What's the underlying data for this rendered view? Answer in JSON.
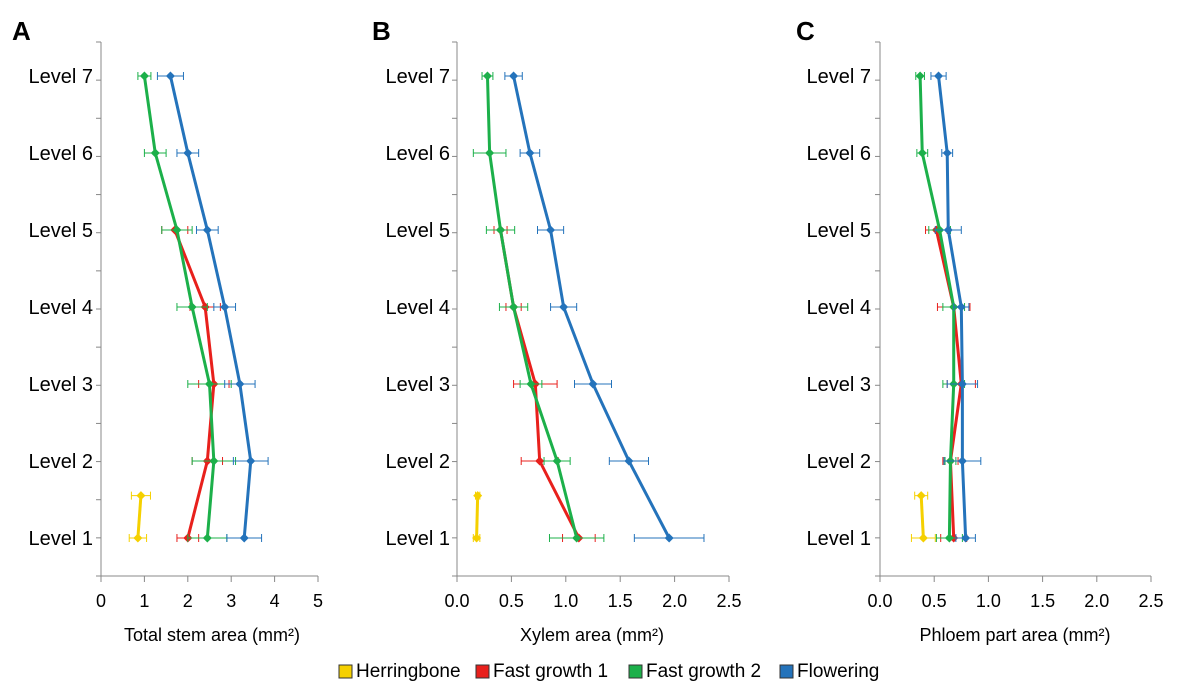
{
  "colors": {
    "Herringbone": "#f5d000",
    "Fast growth 1": "#e8201c",
    "Fast growth 2": "#1cb04a",
    "Flowering": "#2473bb"
  },
  "legend": {
    "items": [
      "Herringbone",
      "Fast growth 1",
      "Fast growth 2",
      "Flowering"
    ]
  },
  "chart_data": [
    {
      "type": "line",
      "panel": "A",
      "xlabel": "Total stem area (mm²)",
      "categories": [
        "Level 1",
        "Level 2",
        "Level 3",
        "Level 4",
        "Level 5",
        "Level 6",
        "Level 7"
      ],
      "xlim": [
        0,
        5
      ],
      "xticks": [
        "0",
        "1",
        "2",
        "3",
        "4",
        "5"
      ],
      "series": [
        {
          "name": "Herringbone",
          "points": [
            {
              "level": 1,
              "x": 0.85,
              "err": 0.2
            },
            {
              "level": 1.55,
              "x": 0.92,
              "err": 0.22
            }
          ]
        },
        {
          "name": "Fast growth 1",
          "points": [
            {
              "level": 1,
              "x": 2.0,
              "err": 0.25
            },
            {
              "level": 2,
              "x": 2.45,
              "err": 0.35
            },
            {
              "level": 3,
              "x": 2.6,
              "err": 0.35
            },
            {
              "level": 4,
              "x": 2.4,
              "err": 0.35
            },
            {
              "level": 5,
              "x": 1.7,
              "err": 0.3
            }
          ]
        },
        {
          "name": "Fast growth 2",
          "points": [
            {
              "level": 1,
              "x": 2.45,
              "err": 0.45
            },
            {
              "level": 2,
              "x": 2.6,
              "err": 0.5
            },
            {
              "level": 3,
              "x": 2.5,
              "err": 0.5
            },
            {
              "level": 4,
              "x": 2.1,
              "err": 0.35
            },
            {
              "level": 5,
              "x": 1.75,
              "err": 0.35
            },
            {
              "level": 6,
              "x": 1.25,
              "err": 0.25
            },
            {
              "level": 7,
              "x": 1.0,
              "err": 0.15
            }
          ]
        },
        {
          "name": "Flowering",
          "points": [
            {
              "level": 1,
              "x": 3.3,
              "err": 0.4
            },
            {
              "level": 2,
              "x": 3.45,
              "err": 0.4
            },
            {
              "level": 3,
              "x": 3.2,
              "err": 0.35
            },
            {
              "level": 4,
              "x": 2.85,
              "err": 0.25
            },
            {
              "level": 5,
              "x": 2.45,
              "err": 0.25
            },
            {
              "level": 6,
              "x": 2.0,
              "err": 0.25
            },
            {
              "level": 7,
              "x": 1.6,
              "err": 0.3
            }
          ]
        }
      ]
    },
    {
      "type": "line",
      "panel": "B",
      "xlabel": "Xylem area (mm²)",
      "categories": [
        "Level 1",
        "Level 2",
        "Level 3",
        "Level 4",
        "Level 5",
        "Level 6",
        "Level 7"
      ],
      "xlim": [
        0,
        2.5
      ],
      "xticks": [
        "0.0",
        "0.5",
        "1.0",
        "1.5",
        "2.0",
        "2.5"
      ],
      "series": [
        {
          "name": "Herringbone",
          "points": [
            {
              "level": 1,
              "x": 0.18,
              "err": 0.03
            },
            {
              "level": 1.55,
              "x": 0.19,
              "err": 0.02
            }
          ]
        },
        {
          "name": "Fast growth 1",
          "points": [
            {
              "level": 1,
              "x": 1.12,
              "err": 0.15
            },
            {
              "level": 2,
              "x": 0.76,
              "err": 0.17
            },
            {
              "level": 3,
              "x": 0.72,
              "err": 0.2
            },
            {
              "level": 4,
              "x": 0.52,
              "err": 0.07
            },
            {
              "level": 5,
              "x": 0.4,
              "err": 0.06
            }
          ]
        },
        {
          "name": "Fast growth 2",
          "points": [
            {
              "level": 1,
              "x": 1.1,
              "err": 0.25
            },
            {
              "level": 2,
              "x": 0.92,
              "err": 0.12
            },
            {
              "level": 3,
              "x": 0.68,
              "err": 0.1
            },
            {
              "level": 4,
              "x": 0.52,
              "err": 0.13
            },
            {
              "level": 5,
              "x": 0.4,
              "err": 0.13
            },
            {
              "level": 6,
              "x": 0.3,
              "err": 0.15
            },
            {
              "level": 7,
              "x": 0.28,
              "err": 0.05
            }
          ]
        },
        {
          "name": "Flowering",
          "points": [
            {
              "level": 1,
              "x": 1.95,
              "err": 0.32
            },
            {
              "level": 2,
              "x": 1.58,
              "err": 0.18
            },
            {
              "level": 3,
              "x": 1.25,
              "err": 0.17
            },
            {
              "level": 4,
              "x": 0.98,
              "err": 0.12
            },
            {
              "level": 5,
              "x": 0.86,
              "err": 0.12
            },
            {
              "level": 6,
              "x": 0.67,
              "err": 0.09
            },
            {
              "level": 7,
              "x": 0.52,
              "err": 0.08
            }
          ]
        }
      ]
    },
    {
      "type": "line",
      "panel": "C",
      "xlabel": "Phloem part area (mm²)",
      "categories": [
        "Level 1",
        "Level 2",
        "Level 3",
        "Level 4",
        "Level 5",
        "Level 6",
        "Level 7"
      ],
      "xlim": [
        0,
        2.5
      ],
      "xticks": [
        "0.0",
        "0.5",
        "1.0",
        "1.5",
        "2.0",
        "2.5"
      ],
      "series": [
        {
          "name": "Herringbone",
          "points": [
            {
              "level": 1,
              "x": 0.4,
              "err": 0.11
            },
            {
              "level": 1.55,
              "x": 0.38,
              "err": 0.06
            }
          ]
        },
        {
          "name": "Fast growth 1",
          "points": [
            {
              "level": 1,
              "x": 0.68,
              "err": 0.12
            },
            {
              "level": 2,
              "x": 0.65,
              "err": 0.07
            },
            {
              "level": 3,
              "x": 0.75,
              "err": 0.13
            },
            {
              "level": 4,
              "x": 0.68,
              "err": 0.15
            },
            {
              "level": 5,
              "x": 0.52,
              "err": 0.1
            }
          ]
        },
        {
          "name": "Fast growth 2",
          "points": [
            {
              "level": 1,
              "x": 0.64,
              "err": 0.12
            },
            {
              "level": 2,
              "x": 0.65,
              "err": 0.05
            },
            {
              "level": 3,
              "x": 0.68,
              "err": 0.1
            },
            {
              "level": 4,
              "x": 0.68,
              "err": 0.1
            },
            {
              "level": 5,
              "x": 0.55,
              "err": 0.1
            },
            {
              "level": 6,
              "x": 0.39,
              "err": 0.05
            },
            {
              "level": 7,
              "x": 0.37,
              "err": 0.04
            }
          ]
        },
        {
          "name": "Flowering",
          "points": [
            {
              "level": 1,
              "x": 0.79,
              "err": 0.09
            },
            {
              "level": 2,
              "x": 0.76,
              "err": 0.17
            },
            {
              "level": 3,
              "x": 0.76,
              "err": 0.14
            },
            {
              "level": 4,
              "x": 0.75,
              "err": 0.07
            },
            {
              "level": 5,
              "x": 0.63,
              "err": 0.12
            },
            {
              "level": 6,
              "x": 0.62,
              "err": 0.05
            },
            {
              "level": 7,
              "x": 0.54,
              "err": 0.07
            }
          ]
        }
      ]
    }
  ]
}
